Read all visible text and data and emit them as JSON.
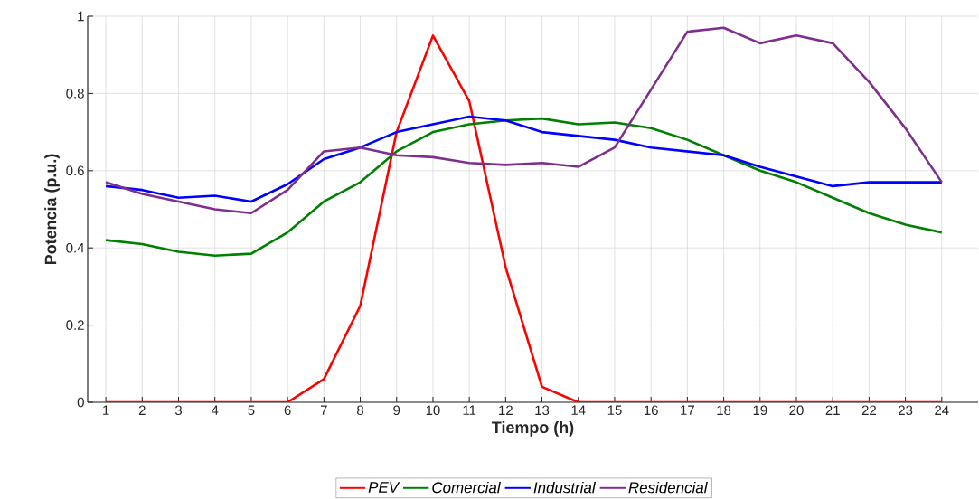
{
  "chart_data": {
    "type": "line",
    "xlabel": "Tiempo (h)",
    "ylabel": "Potencia (p.u.)",
    "x": [
      1,
      2,
      3,
      4,
      5,
      6,
      7,
      8,
      9,
      10,
      11,
      12,
      13,
      14,
      15,
      16,
      17,
      18,
      19,
      20,
      21,
      22,
      23,
      24
    ],
    "series": [
      {
        "name": "PEV",
        "color": "#ff0000",
        "values": [
          0,
          0,
          0,
          0,
          0,
          0,
          0.06,
          0.25,
          0.7,
          0.95,
          0.78,
          0.35,
          0.04,
          0,
          0,
          0,
          0,
          0,
          0,
          0,
          0,
          0,
          0,
          0
        ]
      },
      {
        "name": "Comercial",
        "color": "#008000",
        "values": [
          0.42,
          0.41,
          0.39,
          0.38,
          0.385,
          0.44,
          0.52,
          0.57,
          0.65,
          0.7,
          0.72,
          0.73,
          0.735,
          0.72,
          0.725,
          0.71,
          0.68,
          0.64,
          0.6,
          0.57,
          0.53,
          0.49,
          0.46,
          0.44
        ]
      },
      {
        "name": "Industrial",
        "color": "#0000ff",
        "values": [
          0.56,
          0.55,
          0.53,
          0.535,
          0.52,
          0.565,
          0.63,
          0.66,
          0.7,
          0.72,
          0.74,
          0.73,
          0.7,
          0.69,
          0.68,
          0.66,
          0.65,
          0.64,
          0.61,
          0.585,
          0.56,
          0.57,
          0.57,
          0.57
        ]
      },
      {
        "name": "Residencial",
        "color": "#7e2f8e",
        "values": [
          0.57,
          0.54,
          0.52,
          0.5,
          0.49,
          0.55,
          0.65,
          0.66,
          0.64,
          0.635,
          0.62,
          0.615,
          0.62,
          0.61,
          0.66,
          0.81,
          0.96,
          0.97,
          0.93,
          0.95,
          0.93,
          0.83,
          0.71,
          0.57
        ]
      }
    ],
    "xlim": [
      0.5,
      25
    ],
    "ylim": [
      0,
      1
    ],
    "xticks": [
      1,
      2,
      3,
      4,
      5,
      6,
      7,
      8,
      9,
      10,
      11,
      12,
      13,
      14,
      15,
      16,
      17,
      18,
      19,
      20,
      21,
      22,
      23,
      24
    ],
    "yticks": [
      0,
      0.2,
      0.4,
      0.6,
      0.8,
      1
    ],
    "grid": true,
    "legend": "bottom",
    "line_style": "solid"
  }
}
